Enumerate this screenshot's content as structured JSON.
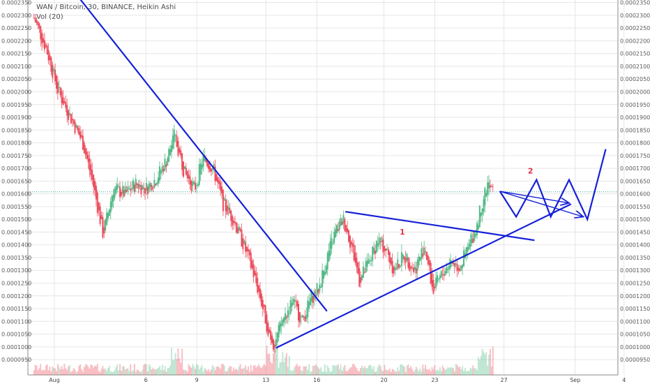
{
  "legend": {
    "title": "WAN / Bitcoin, 30, BINANCE, Heikin Ashi",
    "volume": "Vol (20)"
  },
  "colors": {
    "up": "#53b987",
    "down": "#eb4d5c",
    "line": "#1520d8",
    "grid": "#e6e6e6",
    "price_line": "#26a69a",
    "axis": "#555555",
    "annotation": "#e0314b"
  },
  "chart_data": {
    "type": "candlestick",
    "symbol": "WAN / Bitcoin",
    "interval": "30",
    "exchange": "BINANCE",
    "style": "Heikin Ashi",
    "ylim": [
      8.9e-05,
      0.000236
    ],
    "y_ticks": [
      "0.0000950",
      "0.0001000",
      "0.0001050",
      "0.0001100",
      "0.0001150",
      "0.0001200",
      "0.0001250",
      "0.0001300",
      "0.0001350",
      "0.0001400",
      "0.0001450",
      "0.0001500",
      "0.0001550",
      "0.0001600",
      "0.0001650",
      "0.0001700",
      "0.0001750",
      "0.0001800",
      "0.0001850",
      "0.0001900",
      "0.0001950",
      "0.0002000",
      "0.0002050",
      "0.0002100",
      "0.0002150",
      "0.0002200",
      "0.0002250",
      "0.0002300",
      "0.0002350"
    ],
    "x_range_days": [
      0,
      29.0
    ],
    "x_ticks": [
      {
        "label": "Aug",
        "day": 1.3
      },
      {
        "label": "6",
        "day": 5.8
      },
      {
        "label": "9",
        "day": 8.3
      },
      {
        "label": "13",
        "day": 11.7
      },
      {
        "label": "16",
        "day": 14.2
      },
      {
        "label": "20",
        "day": 17.5
      },
      {
        "label": "23",
        "day": 20.0
      },
      {
        "label": "27",
        "day": 23.4
      },
      {
        "label": "Sep",
        "day": 26.9
      },
      {
        "label": "4",
        "day": 29.3
      }
    ],
    "price_path": [
      [
        0.3,
        0.000229
      ],
      [
        0.9,
        0.000217
      ],
      [
        1.5,
        0.0002
      ],
      [
        2.1,
        0.00019
      ],
      [
        2.7,
        0.00018
      ],
      [
        3.2,
        0.000164
      ],
      [
        3.7,
        0.000144
      ],
      [
        4.2,
        0.000162
      ],
      [
        4.8,
        0.00016
      ],
      [
        5.3,
        0.000164
      ],
      [
        5.8,
        0.000162
      ],
      [
        6.3,
        0.000166
      ],
      [
        6.8,
        0.000173
      ],
      [
        7.2,
        0.000183
      ],
      [
        7.7,
        0.000168
      ],
      [
        8.2,
        0.000162
      ],
      [
        8.6,
        0.000174
      ],
      [
        9.1,
        0.00017
      ],
      [
        9.6,
        0.000156
      ],
      [
        10.1,
        0.00015
      ],
      [
        10.6,
        0.00014
      ],
      [
        11.0,
        0.000131
      ],
      [
        11.4,
        0.00012
      ],
      [
        11.8,
        0.000107
      ],
      [
        12.1,
        0.000101
      ],
      [
        12.5,
        0.00011
      ],
      [
        13.0,
        0.000118
      ],
      [
        13.5,
        0.00011
      ],
      [
        13.9,
        0.000119
      ],
      [
        14.3,
        0.000123
      ],
      [
        14.7,
        0.000135
      ],
      [
        15.1,
        0.000145
      ],
      [
        15.5,
        0.00015
      ],
      [
        15.9,
        0.00014
      ],
      [
        16.3,
        0.000126
      ],
      [
        16.8,
        0.000134
      ],
      [
        17.2,
        0.000142
      ],
      [
        17.6,
        0.000138
      ],
      [
        18.0,
        0.00013
      ],
      [
        18.5,
        0.000136
      ],
      [
        19.0,
        0.00013
      ],
      [
        19.5,
        0.00014
      ],
      [
        19.9,
        0.000122
      ],
      [
        20.4,
        0.000129
      ],
      [
        20.8,
        0.000134
      ],
      [
        21.2,
        0.000131
      ],
      [
        21.6,
        0.000138
      ],
      [
        22.0,
        0.000146
      ],
      [
        22.3,
        0.000156
      ],
      [
        22.6,
        0.000164
      ],
      [
        22.9,
        0.00016
      ]
    ],
    "current_price_line": 0.0001608,
    "volume_profile": "low bars along bottom, spike near 14 Aug and 25 Aug",
    "drawings": {
      "lines": [
        {
          "name": "downtrend-line",
          "points": [
            [
              2.5,
              0.000237
            ],
            [
              14.7,
              0.000114
            ]
          ]
        },
        {
          "name": "uptrend-support-line",
          "points": [
            [
              12.2,
              9.96e-05
            ],
            [
              26.7,
              0.000156
            ]
          ]
        },
        {
          "name": "triangle-upper-line",
          "points": [
            [
              15.6,
              0.000153
            ],
            [
              24.9,
              0.0001418
            ]
          ]
        },
        {
          "name": "projection-zigzag",
          "points": [
            [
              23.2,
              0.000161
            ],
            [
              24.0,
              0.000151
            ],
            [
              25.0,
              0.0001655
            ],
            [
              25.7,
              0.000151
            ],
            [
              26.6,
              0.0001655
            ],
            [
              27.5,
              0.00015
            ],
            [
              28.4,
              0.0001775
            ]
          ]
        },
        {
          "name": "projection-arrow-a",
          "points": [
            [
              23.2,
              0.000161
            ],
            [
              26.6,
              0.0001564
            ]
          ],
          "arrow": true
        },
        {
          "name": "projection-arrow-b",
          "points": [
            [
              23.2,
              0.000161
            ],
            [
              27.3,
              0.000151
            ]
          ],
          "arrow": true
        }
      ],
      "labels": [
        {
          "text": "1",
          "day": 18.4,
          "price": 0.000144
        },
        {
          "text": "2",
          "day": 24.7,
          "price": 0.000168
        }
      ]
    }
  }
}
